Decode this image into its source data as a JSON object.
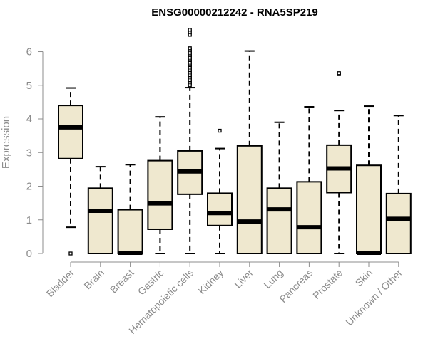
{
  "chart_data": {
    "type": "boxplot",
    "title": "ENSG00000212242 - RNA5SP219",
    "xlabel": "",
    "ylabel": "Expression",
    "ylim": [
      0,
      6.9
    ],
    "yticks": [
      0,
      1,
      2,
      3,
      4,
      5,
      6
    ],
    "box_fill": "#efe8cf",
    "categories": [
      "Bladder",
      "Brain",
      "Breast",
      "Gastric",
      "Hematopoietic cells",
      "Kidney",
      "Liver",
      "Lung",
      "Pancreas",
      "Prostate",
      "Skin",
      "Unknown / Other"
    ],
    "boxes": [
      {
        "min": 0.78,
        "q1": 2.82,
        "median": 3.75,
        "q3": 4.4,
        "max": 4.92,
        "outliers": [
          0.0
        ]
      },
      {
        "min": 0.0,
        "q1": 0.0,
        "median": 1.27,
        "q3": 1.94,
        "max": 2.58,
        "outliers": []
      },
      {
        "min": 0.0,
        "q1": 0.0,
        "median": 0.02,
        "q3": 1.3,
        "max": 2.64,
        "outliers": []
      },
      {
        "min": 0.0,
        "q1": 0.72,
        "median": 1.49,
        "q3": 2.76,
        "max": 4.06,
        "outliers": []
      },
      {
        "min": 0.0,
        "q1": 1.76,
        "median": 2.44,
        "q3": 3.05,
        "max": 4.93,
        "outliers": [
          5.0,
          5.05,
          5.1,
          5.15,
          5.2,
          5.25,
          5.3,
          5.35,
          5.4,
          5.45,
          5.5,
          5.55,
          5.6,
          5.65,
          5.7,
          5.75,
          5.8,
          5.85,
          5.9,
          5.95,
          6.0,
          6.05,
          6.1,
          6.5,
          6.58,
          6.65
        ]
      },
      {
        "min": 0.0,
        "q1": 0.83,
        "median": 1.2,
        "q3": 1.79,
        "max": 3.12,
        "outliers": [
          3.65
        ]
      },
      {
        "min": 0.0,
        "q1": 0.0,
        "median": 0.95,
        "q3": 3.2,
        "max": 6.02,
        "outliers": []
      },
      {
        "min": 0.0,
        "q1": 0.0,
        "median": 1.31,
        "q3": 1.94,
        "max": 3.9,
        "outliers": []
      },
      {
        "min": 0.0,
        "q1": 0.0,
        "median": 0.78,
        "q3": 2.13,
        "max": 4.36,
        "outliers": []
      },
      {
        "min": 0.0,
        "q1": 1.81,
        "median": 2.53,
        "q3": 3.22,
        "max": 4.25,
        "outliers": [
          5.33,
          5.36
        ]
      },
      {
        "min": 0.0,
        "q1": 0.0,
        "median": 0.02,
        "q3": 2.62,
        "max": 4.38,
        "outliers": []
      },
      {
        "min": 0.0,
        "q1": 0.0,
        "median": 1.03,
        "q3": 1.78,
        "max": 4.1,
        "outliers": []
      }
    ]
  }
}
